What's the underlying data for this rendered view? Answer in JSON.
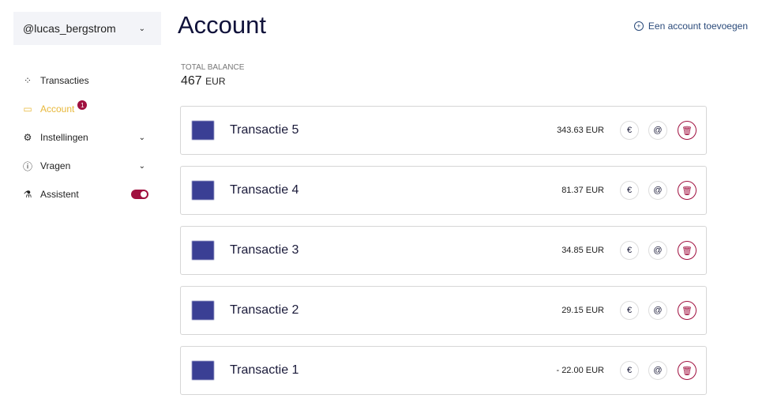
{
  "user": {
    "handle": "@lucas_bergstrom"
  },
  "sidebar": {
    "items": [
      {
        "label": "Transacties",
        "icon": "grid-icon"
      },
      {
        "label": "Account",
        "icon": "card-icon",
        "badge": "1",
        "active": true
      },
      {
        "label": "Instellingen",
        "icon": "gear-icon"
      },
      {
        "label": "Vragen",
        "icon": "question-icon"
      },
      {
        "label": "Assistent",
        "icon": "flask-icon",
        "toggle": true
      }
    ]
  },
  "header": {
    "title": "Account",
    "add_label": "Een account toevoegen"
  },
  "balance": {
    "label": "TOTAL BALANCE",
    "value": "467",
    "currency": "EUR"
  },
  "transactions": [
    {
      "name": "Transactie 5",
      "amount": "343.63 EUR"
    },
    {
      "name": "Transactie 4",
      "amount": "81.37 EUR"
    },
    {
      "name": "Transactie 3",
      "amount": "34.85 EUR"
    },
    {
      "name": "Transactie 2",
      "amount": "29.15 EUR"
    },
    {
      "name": "Transactie 1",
      "amount": "- 22.00 EUR"
    }
  ],
  "colors": {
    "accent": "#a0103f",
    "active": "#e8b83a",
    "thumb": "#3a3f94"
  }
}
